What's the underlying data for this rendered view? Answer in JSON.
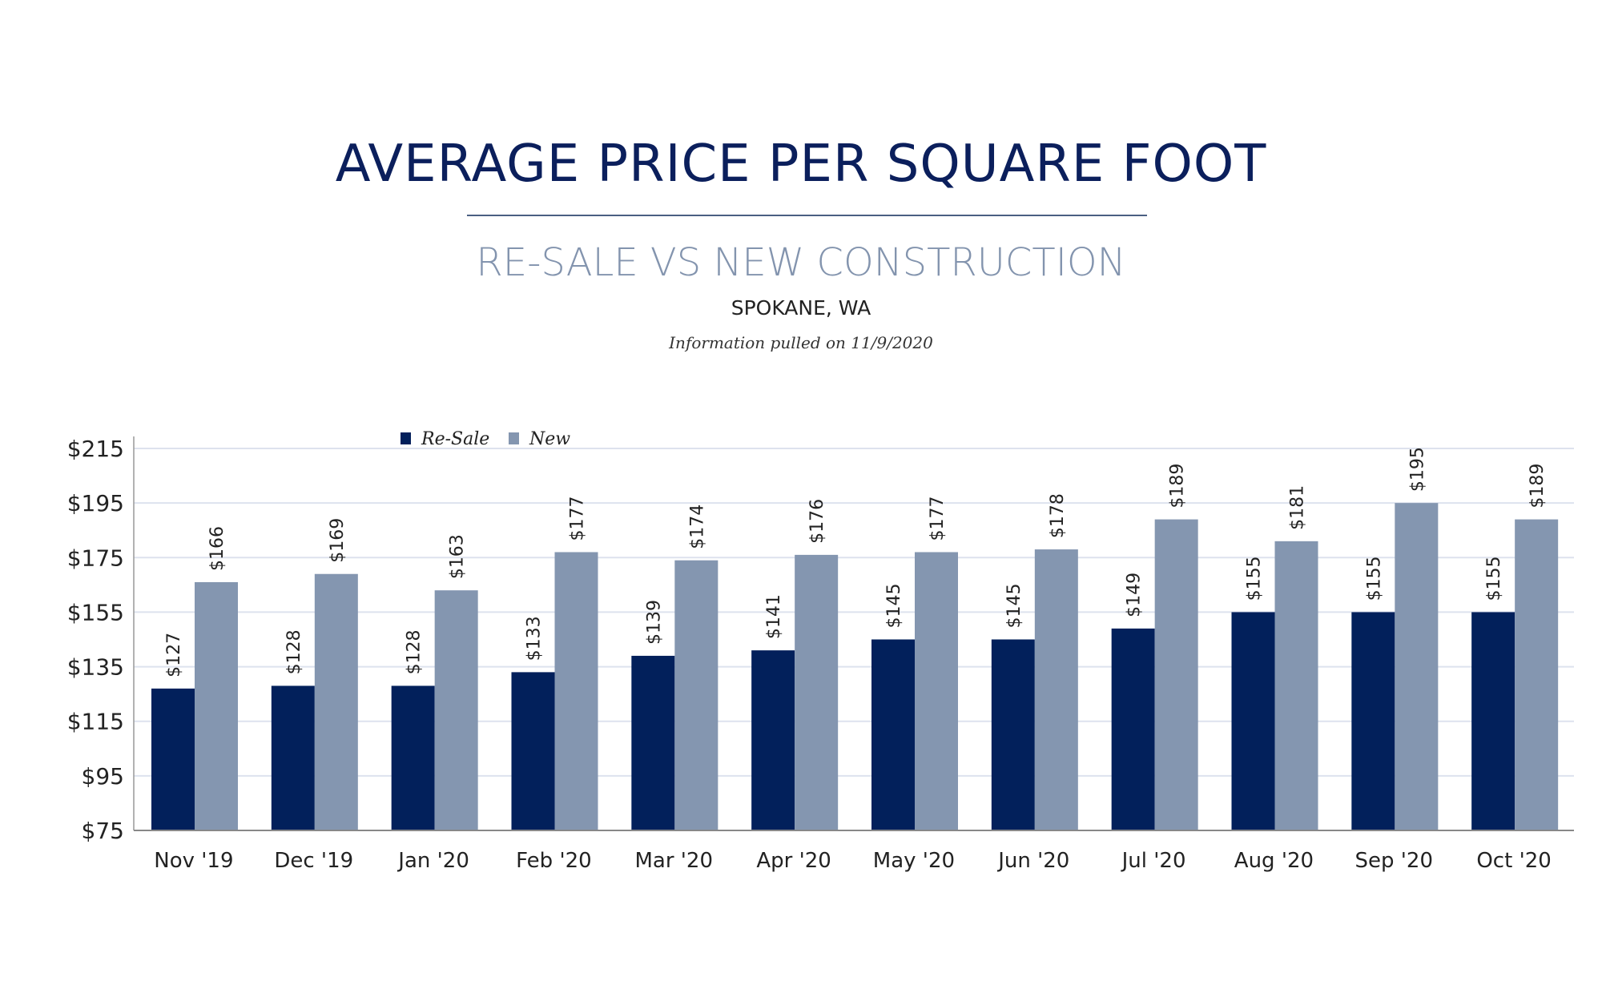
{
  "header": {
    "title": "AVERAGE PRICE PER SQUARE FOOT",
    "subtitle": "RE-SALE VS NEW CONSTRUCTION",
    "location": "SPOKANE, WA",
    "info": "Information pulled on 11/9/2020"
  },
  "chart_data": {
    "type": "bar",
    "title": "AVERAGE PRICE PER SQUARE FOOT",
    "subtitle": "RE-SALE VS NEW CONSTRUCTION",
    "categories": [
      "Nov '19",
      "Dec '19",
      "Jan '20",
      "Feb '20",
      "Mar '20",
      "Apr '20",
      "May '20",
      "Jun '20",
      "Jul '20",
      "Aug '20",
      "Sep '20",
      "Oct '20"
    ],
    "series": [
      {
        "name": "Re-Sale",
        "color": "#02205b",
        "values": [
          127,
          128,
          128,
          133,
          139,
          141,
          145,
          145,
          149,
          155,
          155,
          155
        ]
      },
      {
        "name": "New",
        "color": "#8496b0",
        "values": [
          166,
          169,
          163,
          177,
          174,
          176,
          177,
          178,
          189,
          181,
          195,
          189
        ]
      }
    ],
    "ylim": [
      75,
      215
    ],
    "yticks": [
      75,
      95,
      115,
      135,
      155,
      175,
      195,
      215
    ],
    "ytick_labels": [
      "$75",
      "$95",
      "$115",
      "$135",
      "$155",
      "$175",
      "$195",
      "$215"
    ],
    "data_label_prefix": "$",
    "grid": true,
    "legend": "top-left",
    "xlabel": "",
    "ylabel": ""
  }
}
